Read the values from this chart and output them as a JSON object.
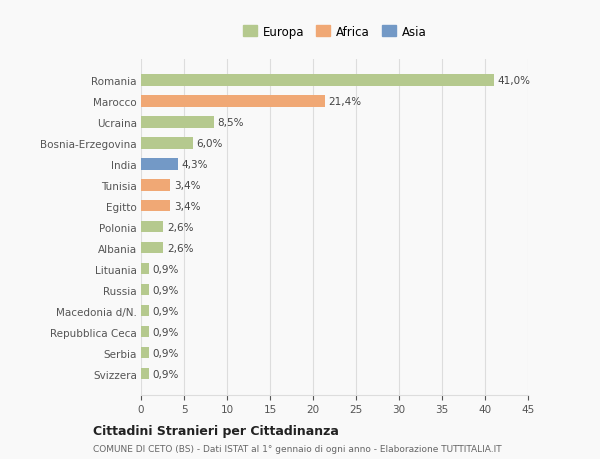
{
  "categories": [
    "Svizzera",
    "Serbia",
    "Repubblica Ceca",
    "Macedonia d/N.",
    "Russia",
    "Lituania",
    "Albania",
    "Polonia",
    "Egitto",
    "Tunisia",
    "India",
    "Bosnia-Erzegovina",
    "Ucraina",
    "Marocco",
    "Romania"
  ],
  "values": [
    0.9,
    0.9,
    0.9,
    0.9,
    0.9,
    0.9,
    2.6,
    2.6,
    3.4,
    3.4,
    4.3,
    6.0,
    8.5,
    21.4,
    41.0
  ],
  "labels": [
    "0,9%",
    "0,9%",
    "0,9%",
    "0,9%",
    "0,9%",
    "0,9%",
    "2,6%",
    "2,6%",
    "3,4%",
    "3,4%",
    "4,3%",
    "6,0%",
    "8,5%",
    "21,4%",
    "41,0%"
  ],
  "colors": [
    "#b5c98e",
    "#b5c98e",
    "#b5c98e",
    "#b5c98e",
    "#b5c98e",
    "#b5c98e",
    "#b5c98e",
    "#b5c98e",
    "#f0a875",
    "#f0a875",
    "#7399c6",
    "#b5c98e",
    "#b5c98e",
    "#f0a875",
    "#b5c98e"
  ],
  "legend_labels": [
    "Europa",
    "Africa",
    "Asia"
  ],
  "legend_colors": [
    "#b5c98e",
    "#f0a875",
    "#7399c6"
  ],
  "xlim": [
    0,
    45
  ],
  "xticks": [
    0,
    5,
    10,
    15,
    20,
    25,
    30,
    35,
    40,
    45
  ],
  "title": "Cittadini Stranieri per Cittadinanza",
  "subtitle": "COMUNE DI CETO (BS) - Dati ISTAT al 1° gennaio di ogni anno - Elaborazione TUTTITALIA.IT",
  "bg_color": "#f9f9f9",
  "grid_color": "#dddddd",
  "bar_height": 0.55,
  "label_fontsize": 7.5,
  "ytick_fontsize": 7.5,
  "xtick_fontsize": 7.5,
  "legend_fontsize": 8.5
}
